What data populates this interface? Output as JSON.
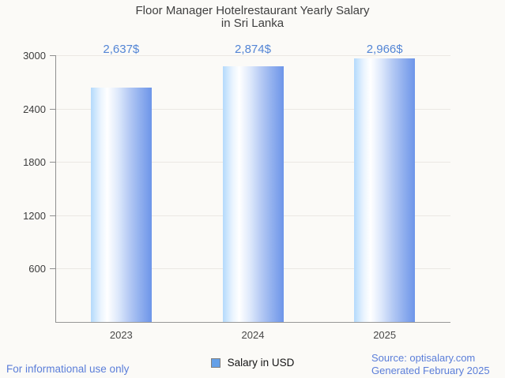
{
  "chart": {
    "title_line1": "Floor Manager Hotelrestaurant Yearly Salary",
    "title_line2": "in Sri Lanka"
  },
  "chart_data": {
    "type": "bar",
    "title": "Floor Manager Hotelrestaurant Yearly Salary in Sri Lanka",
    "categories": [
      "2023",
      "2024",
      "2025"
    ],
    "series": [
      {
        "name": "Salary in USD",
        "values": [
          2637,
          2874,
          2966
        ]
      }
    ],
    "value_labels": [
      "2,637$",
      "2,874$",
      "2,966$"
    ],
    "xlabel": "",
    "ylabel": "",
    "ylim": [
      0,
      3000
    ],
    "yticks": [
      600,
      1200,
      1800,
      2400,
      3000
    ],
    "grid": true,
    "legend_position": "bottom"
  },
  "legend": {
    "label": "Salary in USD"
  },
  "footer": {
    "disclaimer": "For informational use only",
    "source": "Source: optisalary.com",
    "generated": "Generated February 2025"
  },
  "colors": {
    "background": "#fbfaf7",
    "title_text": "#3f3f3f",
    "axis_text": "#484848",
    "value_label_text": "#5385d5",
    "footer_text": "#5b7ed9",
    "grid_line": "#ebe8e3",
    "axis_line": "#8f8f8f",
    "bar_gradient_left": "#b4dafc",
    "bar_gradient_mid": "#ffffff",
    "bar_gradient_right": "#6d95e9",
    "legend_marker_fill": "#64a0e8",
    "legend_marker_border": "#7e7e7e"
  }
}
